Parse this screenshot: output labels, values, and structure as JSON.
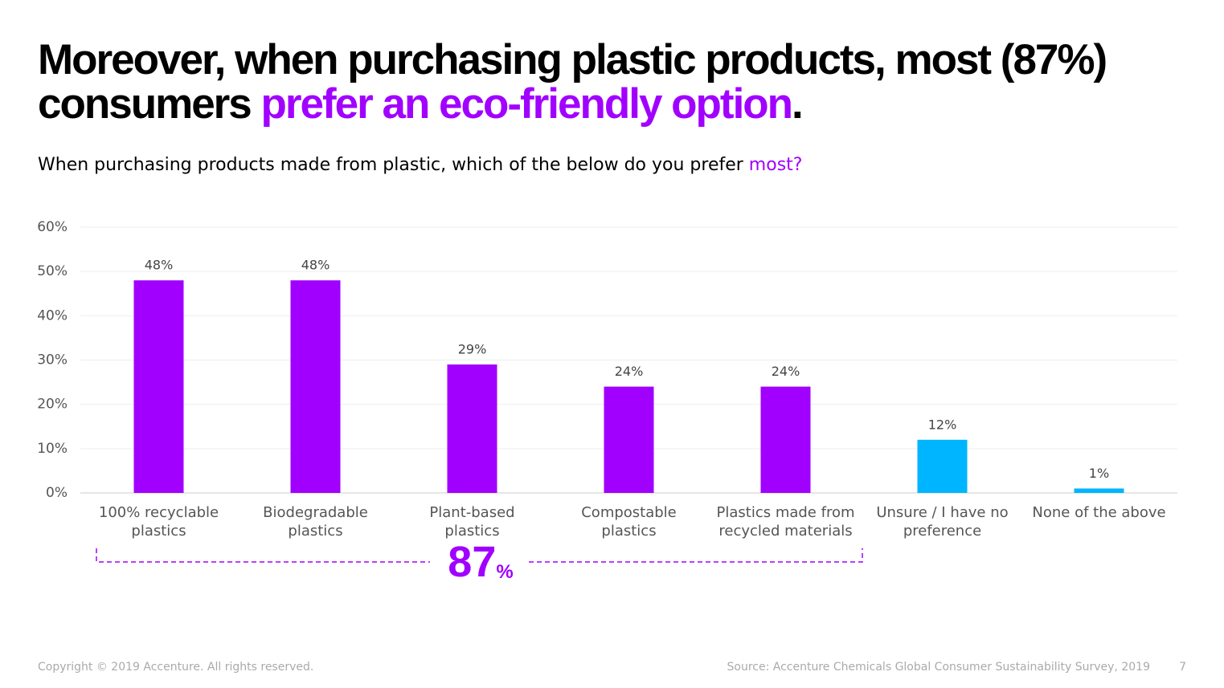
{
  "chart_data": {
    "type": "bar",
    "title": {
      "main": "Moreover, when purchasing plastic products, most (87%) consumers ",
      "highlight": "prefer an eco-friendly option",
      "end": "."
    },
    "subtitle": {
      "main": "When purchasing products made from plastic, which of the below do you prefer ",
      "highlight": "most?"
    },
    "categories": [
      [
        "100% recyclable",
        "plastics"
      ],
      [
        "Biodegradable",
        "plastics"
      ],
      [
        "Plant-based",
        "plastics"
      ],
      [
        "Compostable",
        "plastics"
      ],
      [
        "Plastics made from",
        "recycled materials"
      ],
      [
        "Unsure / I have no",
        "preference"
      ],
      [
        "None of the above"
      ]
    ],
    "values": [
      48,
      48,
      29,
      24,
      24,
      12,
      1
    ],
    "value_labels": [
      "48%",
      "48%",
      "29%",
      "24%",
      "24%",
      "12%",
      "1%"
    ],
    "colors": [
      "#a100ff",
      "#a100ff",
      "#a100ff",
      "#a100ff",
      "#a100ff",
      "#00b5ff",
      "#00b5ff"
    ],
    "ylim": [
      0,
      60
    ],
    "yticks": [
      {
        "value": 0,
        "label": "0%"
      },
      {
        "value": 10,
        "label": "10%"
      },
      {
        "value": 20,
        "label": "20%"
      },
      {
        "value": 30,
        "label": "30%"
      },
      {
        "value": 40,
        "label": "40%"
      },
      {
        "value": 50,
        "label": "50%"
      },
      {
        "value": 60,
        "label": "60%"
      }
    ],
    "grid": true,
    "annotation": {
      "number": "87",
      "unit": "%"
    },
    "footer": {
      "copyright": "Copyright © 2019 Accenture. All rights reserved.",
      "source": "Source: Accenture Chemicals Global Consumer Sustainability Survey, 2019",
      "page": "7"
    }
  }
}
